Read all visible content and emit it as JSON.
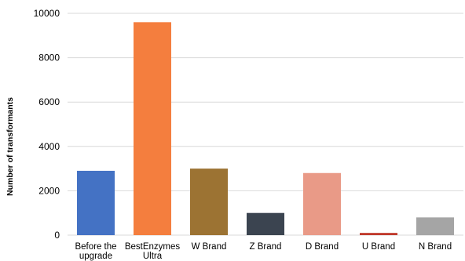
{
  "chart_data": {
    "type": "bar",
    "title": "",
    "xlabel": "",
    "ylabel": "Number of transformants",
    "ylim": [
      0,
      10000
    ],
    "yticks": [
      0,
      2000,
      4000,
      6000,
      8000,
      10000
    ],
    "grid": true,
    "legend": "none",
    "categories": [
      [
        "Before the",
        "upgrade"
      ],
      [
        "BestEnzymes",
        "Ultra"
      ],
      [
        "W Brand"
      ],
      [
        "Z Brand"
      ],
      [
        "D Brand"
      ],
      [
        "U Brand"
      ],
      [
        "N Brand"
      ]
    ],
    "values": [
      2900,
      9600,
      3000,
      1000,
      2800,
      100,
      800
    ],
    "colors": [
      "#4472c4",
      "#f47e3e",
      "#9c7333",
      "#3b4450",
      "#e99a87",
      "#c0392b",
      "#a5a5a5"
    ]
  }
}
